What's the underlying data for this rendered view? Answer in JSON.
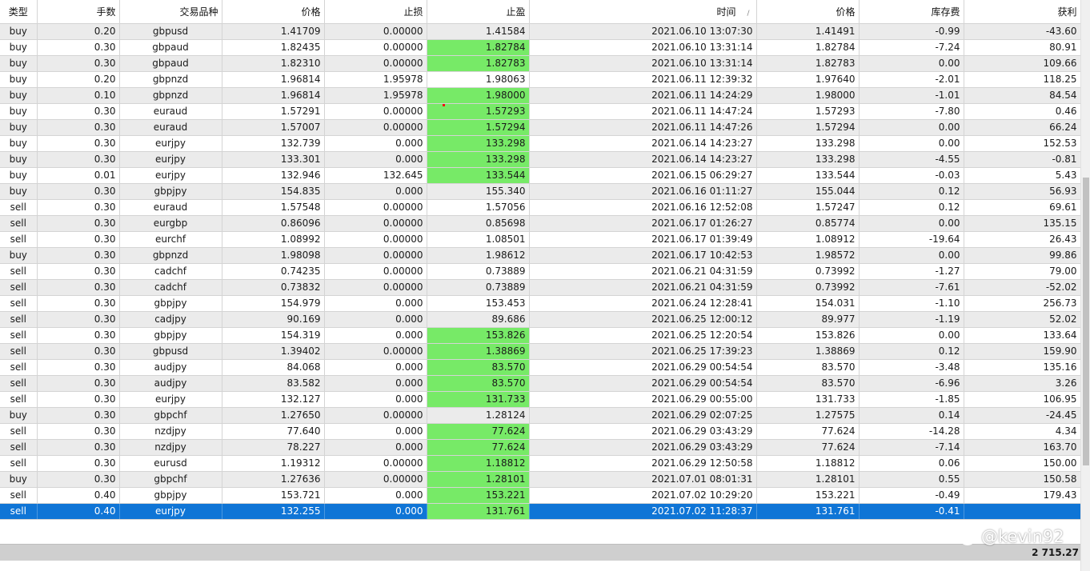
{
  "columns": [
    {
      "key": "type",
      "label": "类型"
    },
    {
      "key": "lots",
      "label": "手数"
    },
    {
      "key": "symbol",
      "label": "交易品种"
    },
    {
      "key": "price",
      "label": "价格"
    },
    {
      "key": "sl",
      "label": "止损"
    },
    {
      "key": "tp",
      "label": "止盈"
    },
    {
      "key": "time",
      "label": "时间"
    },
    {
      "key": "close_price",
      "label": "价格"
    },
    {
      "key": "swap",
      "label": "库存费"
    },
    {
      "key": "profit",
      "label": "获利"
    }
  ],
  "sort_indicator": "/",
  "rows": [
    {
      "type": "buy",
      "lots": "0.20",
      "symbol": "gbpusd",
      "price": "1.41709",
      "sl": "0.00000",
      "tp": "1.41584",
      "time": "2021.06.10 13:07:30",
      "close_price": "1.41491",
      "swap": "-0.99",
      "profit": "-43.60",
      "tp_hit": false
    },
    {
      "type": "buy",
      "lots": "0.30",
      "symbol": "gbpaud",
      "price": "1.82435",
      "sl": "0.00000",
      "tp": "1.82784",
      "time": "2021.06.10 13:31:14",
      "close_price": "1.82784",
      "swap": "-7.24",
      "profit": "80.91",
      "tp_hit": true
    },
    {
      "type": "buy",
      "lots": "0.30",
      "symbol": "gbpaud",
      "price": "1.82310",
      "sl": "0.00000",
      "tp": "1.82783",
      "time": "2021.06.10 13:31:14",
      "close_price": "1.82783",
      "swap": "0.00",
      "profit": "109.66",
      "tp_hit": true
    },
    {
      "type": "buy",
      "lots": "0.20",
      "symbol": "gbpnzd",
      "price": "1.96814",
      "sl": "1.95978",
      "tp": "1.98063",
      "time": "2021.06.11 12:39:32",
      "close_price": "1.97640",
      "swap": "-2.01",
      "profit": "118.25",
      "tp_hit": false
    },
    {
      "type": "buy",
      "lots": "0.10",
      "symbol": "gbpnzd",
      "price": "1.96814",
      "sl": "1.95978",
      "tp": "1.98000",
      "time": "2021.06.11 14:24:29",
      "close_price": "1.98000",
      "swap": "-1.01",
      "profit": "84.54",
      "tp_hit": true
    },
    {
      "type": "buy",
      "lots": "0.30",
      "symbol": "euraud",
      "price": "1.57291",
      "sl": "0.00000",
      "tp": "1.57293",
      "time": "2021.06.11 14:47:24",
      "close_price": "1.57293",
      "swap": "-7.80",
      "profit": "0.46",
      "tp_hit": true
    },
    {
      "type": "buy",
      "lots": "0.30",
      "symbol": "euraud",
      "price": "1.57007",
      "sl": "0.00000",
      "tp": "1.57294",
      "time": "2021.06.11 14:47:26",
      "close_price": "1.57294",
      "swap": "0.00",
      "profit": "66.24",
      "tp_hit": true
    },
    {
      "type": "buy",
      "lots": "0.30",
      "symbol": "eurjpy",
      "price": "132.739",
      "sl": "0.000",
      "tp": "133.298",
      "time": "2021.06.14 14:23:27",
      "close_price": "133.298",
      "swap": "0.00",
      "profit": "152.53",
      "tp_hit": true
    },
    {
      "type": "buy",
      "lots": "0.30",
      "symbol": "eurjpy",
      "price": "133.301",
      "sl": "0.000",
      "tp": "133.298",
      "time": "2021.06.14 14:23:27",
      "close_price": "133.298",
      "swap": "-4.55",
      "profit": "-0.81",
      "tp_hit": true
    },
    {
      "type": "buy",
      "lots": "0.01",
      "symbol": "eurjpy",
      "price": "132.946",
      "sl": "132.645",
      "tp": "133.544",
      "time": "2021.06.15 06:29:27",
      "close_price": "133.544",
      "swap": "-0.03",
      "profit": "5.43",
      "tp_hit": true
    },
    {
      "type": "buy",
      "lots": "0.30",
      "symbol": "gbpjpy",
      "price": "154.835",
      "sl": "0.000",
      "tp": "155.340",
      "time": "2021.06.16 01:11:27",
      "close_price": "155.044",
      "swap": "0.12",
      "profit": "56.93",
      "tp_hit": false
    },
    {
      "type": "sell",
      "lots": "0.30",
      "symbol": "euraud",
      "price": "1.57548",
      "sl": "0.00000",
      "tp": "1.57056",
      "time": "2021.06.16 12:52:08",
      "close_price": "1.57247",
      "swap": "0.12",
      "profit": "69.61",
      "tp_hit": false
    },
    {
      "type": "sell",
      "lots": "0.30",
      "symbol": "eurgbp",
      "price": "0.86096",
      "sl": "0.00000",
      "tp": "0.85698",
      "time": "2021.06.17 01:26:27",
      "close_price": "0.85774",
      "swap": "0.00",
      "profit": "135.15",
      "tp_hit": false
    },
    {
      "type": "sell",
      "lots": "0.30",
      "symbol": "eurchf",
      "price": "1.08992",
      "sl": "0.00000",
      "tp": "1.08501",
      "time": "2021.06.17 01:39:49",
      "close_price": "1.08912",
      "swap": "-19.64",
      "profit": "26.43",
      "tp_hit": false
    },
    {
      "type": "buy",
      "lots": "0.30",
      "symbol": "gbpnzd",
      "price": "1.98098",
      "sl": "0.00000",
      "tp": "1.98612",
      "time": "2021.06.17 10:42:53",
      "close_price": "1.98572",
      "swap": "0.00",
      "profit": "99.86",
      "tp_hit": false
    },
    {
      "type": "sell",
      "lots": "0.30",
      "symbol": "cadchf",
      "price": "0.74235",
      "sl": "0.00000",
      "tp": "0.73889",
      "time": "2021.06.21 04:31:59",
      "close_price": "0.73992",
      "swap": "-1.27",
      "profit": "79.00",
      "tp_hit": false
    },
    {
      "type": "sell",
      "lots": "0.30",
      "symbol": "cadchf",
      "price": "0.73832",
      "sl": "0.00000",
      "tp": "0.73889",
      "time": "2021.06.21 04:31:59",
      "close_price": "0.73992",
      "swap": "-7.61",
      "profit": "-52.02",
      "tp_hit": false
    },
    {
      "type": "sell",
      "lots": "0.30",
      "symbol": "gbpjpy",
      "price": "154.979",
      "sl": "0.000",
      "tp": "153.453",
      "time": "2021.06.24 12:28:41",
      "close_price": "154.031",
      "swap": "-1.10",
      "profit": "256.73",
      "tp_hit": false
    },
    {
      "type": "sell",
      "lots": "0.30",
      "symbol": "cadjpy",
      "price": "90.169",
      "sl": "0.000",
      "tp": "89.686",
      "time": "2021.06.25 12:00:12",
      "close_price": "89.977",
      "swap": "-1.19",
      "profit": "52.02",
      "tp_hit": false
    },
    {
      "type": "sell",
      "lots": "0.30",
      "symbol": "gbpjpy",
      "price": "154.319",
      "sl": "0.000",
      "tp": "153.826",
      "time": "2021.06.25 12:20:54",
      "close_price": "153.826",
      "swap": "0.00",
      "profit": "133.64",
      "tp_hit": true
    },
    {
      "type": "sell",
      "lots": "0.30",
      "symbol": "gbpusd",
      "price": "1.39402",
      "sl": "0.00000",
      "tp": "1.38869",
      "time": "2021.06.25 17:39:23",
      "close_price": "1.38869",
      "swap": "0.12",
      "profit": "159.90",
      "tp_hit": true
    },
    {
      "type": "sell",
      "lots": "0.30",
      "symbol": "audjpy",
      "price": "84.068",
      "sl": "0.000",
      "tp": "83.570",
      "time": "2021.06.29 00:54:54",
      "close_price": "83.570",
      "swap": "-3.48",
      "profit": "135.16",
      "tp_hit": true
    },
    {
      "type": "sell",
      "lots": "0.30",
      "symbol": "audjpy",
      "price": "83.582",
      "sl": "0.000",
      "tp": "83.570",
      "time": "2021.06.29 00:54:54",
      "close_price": "83.570",
      "swap": "-6.96",
      "profit": "3.26",
      "tp_hit": true
    },
    {
      "type": "sell",
      "lots": "0.30",
      "symbol": "eurjpy",
      "price": "132.127",
      "sl": "0.000",
      "tp": "131.733",
      "time": "2021.06.29 00:55:00",
      "close_price": "131.733",
      "swap": "-1.85",
      "profit": "106.95",
      "tp_hit": true
    },
    {
      "type": "buy",
      "lots": "0.30",
      "symbol": "gbpchf",
      "price": "1.27650",
      "sl": "0.00000",
      "tp": "1.28124",
      "time": "2021.06.29 02:07:25",
      "close_price": "1.27575",
      "swap": "0.14",
      "profit": "-24.45",
      "tp_hit": false
    },
    {
      "type": "sell",
      "lots": "0.30",
      "symbol": "nzdjpy",
      "price": "77.640",
      "sl": "0.000",
      "tp": "77.624",
      "time": "2021.06.29 03:43:29",
      "close_price": "77.624",
      "swap": "-14.28",
      "profit": "4.34",
      "tp_hit": true
    },
    {
      "type": "sell",
      "lots": "0.30",
      "symbol": "nzdjpy",
      "price": "78.227",
      "sl": "0.000",
      "tp": "77.624",
      "time": "2021.06.29 03:43:29",
      "close_price": "77.624",
      "swap": "-7.14",
      "profit": "163.70",
      "tp_hit": true
    },
    {
      "type": "sell",
      "lots": "0.30",
      "symbol": "eurusd",
      "price": "1.19312",
      "sl": "0.00000",
      "tp": "1.18812",
      "time": "2021.06.29 12:50:58",
      "close_price": "1.18812",
      "swap": "0.06",
      "profit": "150.00",
      "tp_hit": true
    },
    {
      "type": "buy",
      "lots": "0.30",
      "symbol": "gbpchf",
      "price": "1.27636",
      "sl": "0.00000",
      "tp": "1.28101",
      "time": "2021.07.01 08:01:31",
      "close_price": "1.28101",
      "swap": "0.55",
      "profit": "150.58",
      "tp_hit": true
    },
    {
      "type": "sell",
      "lots": "0.40",
      "symbol": "gbpjpy",
      "price": "153.721",
      "sl": "0.000",
      "tp": "153.221",
      "time": "2021.07.02 10:29:20",
      "close_price": "153.221",
      "swap": "-0.49",
      "profit": "179.43",
      "tp_hit": true
    },
    {
      "type": "sell",
      "lots": "0.40",
      "symbol": "eurjpy",
      "price": "132.255",
      "sl": "0.000",
      "tp": "131.761",
      "time": "2021.07.02 11:28:37",
      "close_price": "131.761",
      "swap": "-0.41",
      "profit": "",
      "tp_hit": true,
      "selected": true
    }
  ],
  "footer": {
    "total_profit": "2 715.27"
  },
  "watermark": {
    "text": "@kevin92"
  },
  "colors": {
    "tp_hit": "#77ea67",
    "selected_row": "#0f75d6",
    "alt_row": "#ebebeb",
    "footer": "#cfcfcf"
  },
  "icons": {
    "watermark_logo": "weibo-logo-icon"
  }
}
